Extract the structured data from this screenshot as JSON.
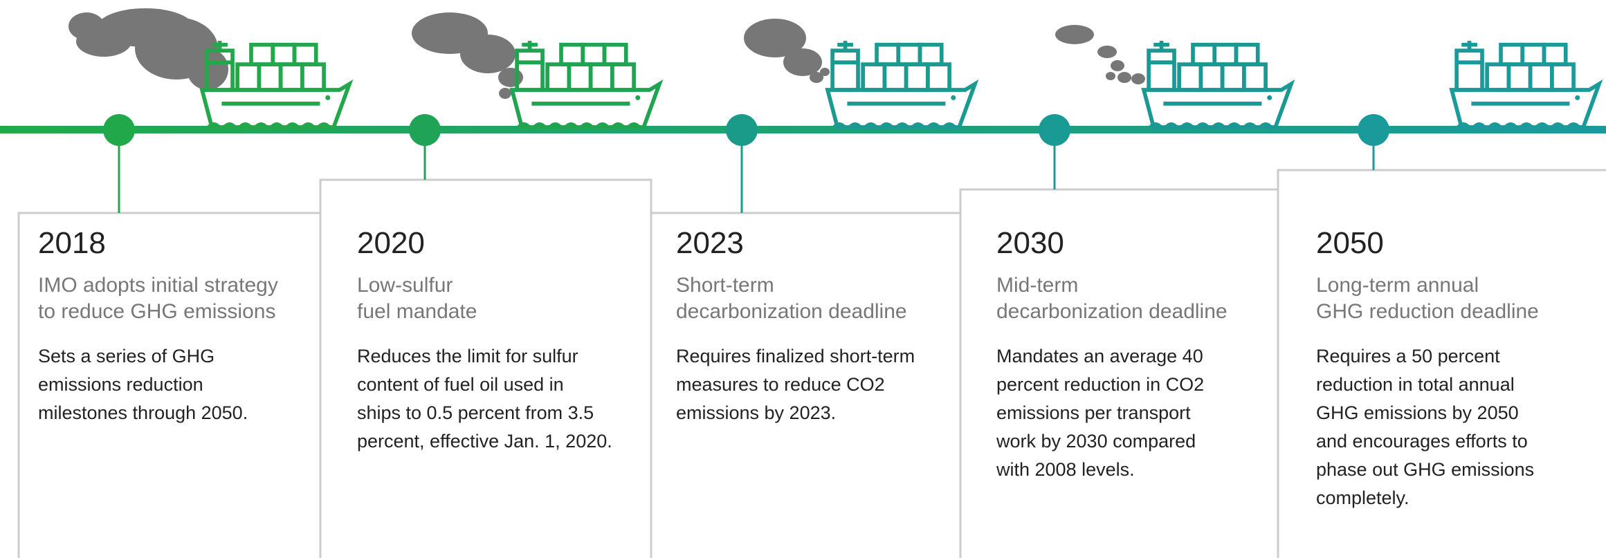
{
  "items": [
    {
      "year": "2018",
      "title": [
        "IMO adopts initial strategy",
        "to reduce GHG emissions"
      ],
      "description": [
        "Sets a series of GHG",
        "emissions reduction",
        "milestones through 2050."
      ]
    },
    {
      "year": "2020",
      "title": [
        "Low-sulfur",
        "fuel mandate"
      ],
      "description": [
        "Reduces the limit for sulfur",
        "content of fuel oil used in",
        "ships to 0.5 percent from 3.5",
        "percent, effective Jan. 1, 2020."
      ]
    },
    {
      "year": "2023",
      "title": [
        "Short-term",
        "decarbonization deadline"
      ],
      "description": [
        "Requires finalized short-term",
        "measures to reduce CO2",
        "emissions by 2023."
      ]
    },
    {
      "year": "2030",
      "title": [
        "Mid-term",
        "decarbonization deadline"
      ],
      "description": [
        "Mandates an average 40",
        "percent reduction in CO2",
        "emissions per transport",
        "work by 2030 compared",
        "with 2008 levels."
      ]
    },
    {
      "year": "2050",
      "title": [
        "Long-term annual",
        "GHG reduction deadline"
      ],
      "description": [
        "Requires a 50 percent",
        "reduction in total annual",
        "GHG emissions by 2050",
        "and encourages efforts to",
        "phase out GHG emissions",
        "completely."
      ]
    }
  ]
}
